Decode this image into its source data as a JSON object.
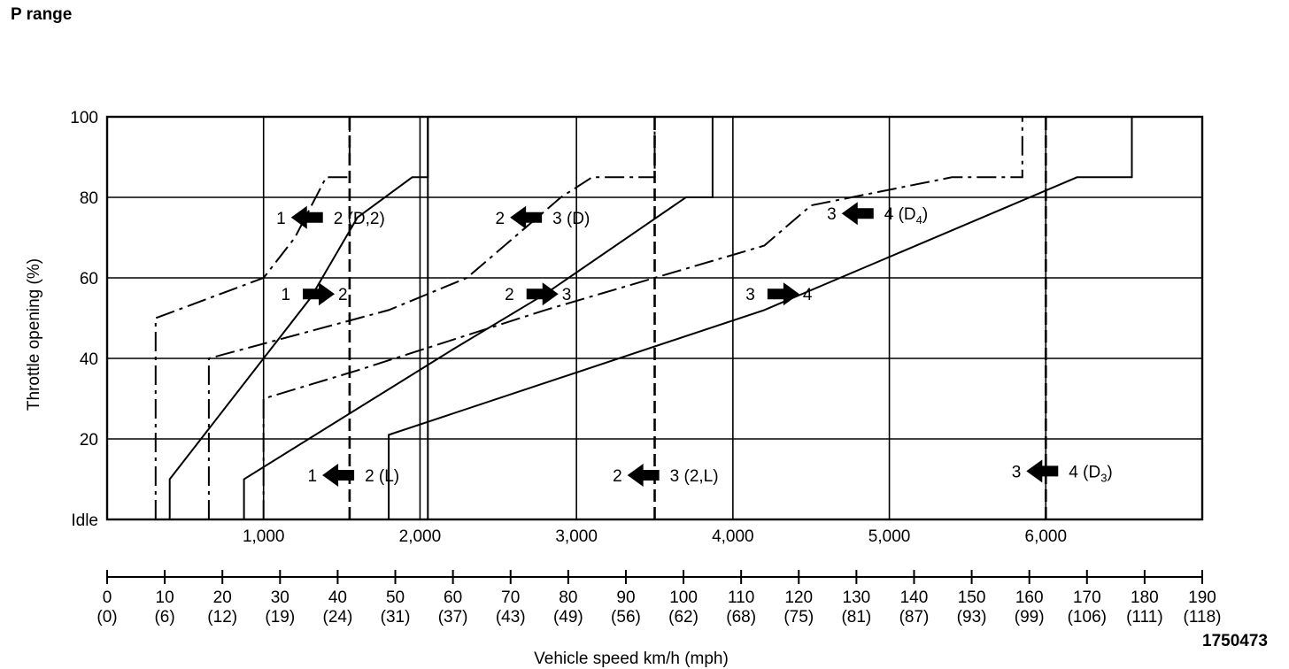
{
  "page": {
    "title": "P range",
    "figure_id": "1750473"
  },
  "chart_data": {
    "type": "line",
    "title": "",
    "xlabel": "Vehicle speed km/h (mph)",
    "ylabel": "Throttle opening (%)",
    "x_rpm_ticks": [
      "1,000",
      "2,000",
      "3,000",
      "4,000",
      "5,000",
      "6,000"
    ],
    "x_speed_ticks": [
      "0",
      "10",
      "20",
      "30",
      "40",
      "50",
      "60",
      "70",
      "80",
      "90",
      "100",
      "110",
      "120",
      "130",
      "140",
      "150",
      "160",
      "170",
      "180",
      "190"
    ],
    "x_mph_ticks": [
      "(0)",
      "(6)",
      "(12)",
      "(19)",
      "(24)",
      "(31)",
      "(37)",
      "(43)",
      "(49)",
      "(56)",
      "(62)",
      "(68)",
      "(75)",
      "(81)",
      "(87)",
      "(93)",
      "(99)",
      "(106)",
      "(111)",
      "(118)"
    ],
    "y_ticks": [
      {
        "label": "Idle",
        "value": 0
      },
      {
        "label": "20",
        "value": 20
      },
      {
        "label": "40",
        "value": 40
      },
      {
        "label": "60",
        "value": 60
      },
      {
        "label": "80",
        "value": 80
      },
      {
        "label": "100",
        "value": 100
      }
    ],
    "xlim": [
      0,
      7000
    ],
    "ylim": [
      0,
      100
    ],
    "grid": true,
    "series": [
      {
        "style": "solid",
        "points": [
          [
            400,
            0
          ],
          [
            400,
            10
          ],
          [
            1300,
            55
          ],
          [
            1600,
            75
          ],
          [
            1950,
            85
          ],
          [
            2050,
            85
          ],
          [
            2050,
            100
          ]
        ]
      },
      {
        "style": "dashdot",
        "points": [
          [
            310,
            0
          ],
          [
            310,
            50
          ],
          [
            1000,
            60
          ],
          [
            1200,
            70
          ],
          [
            1400,
            85
          ],
          [
            1550,
            85
          ],
          [
            1550,
            100
          ]
        ]
      },
      {
        "style": "dashdot",
        "points": [
          [
            650,
            0
          ],
          [
            650,
            40
          ],
          [
            1800,
            52
          ],
          [
            2300,
            60
          ],
          [
            2900,
            80
          ],
          [
            3100,
            85
          ],
          [
            3500,
            85
          ],
          [
            3500,
            100
          ]
        ]
      },
      {
        "style": "solid",
        "points": [
          [
            875,
            0
          ],
          [
            875,
            10
          ],
          [
            2200,
            42
          ],
          [
            2800,
            56
          ],
          [
            3700,
            80
          ],
          [
            3870,
            80
          ],
          [
            3870,
            100
          ]
        ]
      },
      {
        "style": "dashdot",
        "points": [
          [
            1000,
            0
          ],
          [
            1000,
            30
          ],
          [
            1600,
            37
          ],
          [
            2800,
            52
          ],
          [
            4200,
            68
          ],
          [
            4500,
            78
          ],
          [
            5400,
            85
          ],
          [
            5850,
            85
          ],
          [
            5850,
            100
          ]
        ]
      },
      {
        "style": "solid",
        "points": [
          [
            1800,
            0
          ],
          [
            1800,
            21
          ],
          [
            4200,
            52
          ],
          [
            6200,
            85
          ],
          [
            6550,
            85
          ],
          [
            6550,
            100
          ]
        ]
      },
      {
        "style": "solid",
        "points": [
          [
            2050,
            0
          ],
          [
            2050,
            100
          ]
        ]
      },
      {
        "style": "dashed",
        "points": [
          [
            1550,
            0
          ],
          [
            1550,
            100
          ]
        ]
      },
      {
        "style": "dashed",
        "points": [
          [
            3500,
            0
          ],
          [
            3500,
            100
          ]
        ]
      },
      {
        "style": "dashed",
        "points": [
          [
            6000,
            0
          ],
          [
            6000,
            100
          ]
        ]
      }
    ],
    "annotations": [
      {
        "left": "1",
        "right": "2 (D,2)",
        "dir": "left",
        "x": 1300,
        "y": 75
      },
      {
        "left": "2",
        "right": "3 (D)",
        "dir": "left",
        "x": 2700,
        "y": 75
      },
      {
        "left": "3",
        "right": "4",
        "dir": "left",
        "x": 4820,
        "y": 76,
        "right_main": "4 (D",
        "right_sub": "4",
        "right_close": ")"
      },
      {
        "left": "1",
        "right": "2",
        "dir": "right",
        "x": 1330,
        "y": 56
      },
      {
        "left": "2",
        "right": "3",
        "dir": "right",
        "x": 2760,
        "y": 56
      },
      {
        "left": "3",
        "right": "4",
        "dir": "right",
        "x": 4300,
        "y": 56
      },
      {
        "left": "1",
        "right": "2 (L)",
        "dir": "left",
        "x": 1500,
        "y": 11
      },
      {
        "left": "2",
        "right": "3 (2,L)",
        "dir": "left",
        "x": 3450,
        "y": 11
      },
      {
        "left": "3",
        "right": "4",
        "dir": "left",
        "x": 6000,
        "y": 12,
        "right_main": "4 (D",
        "right_sub": "3",
        "right_close": ")"
      }
    ]
  }
}
